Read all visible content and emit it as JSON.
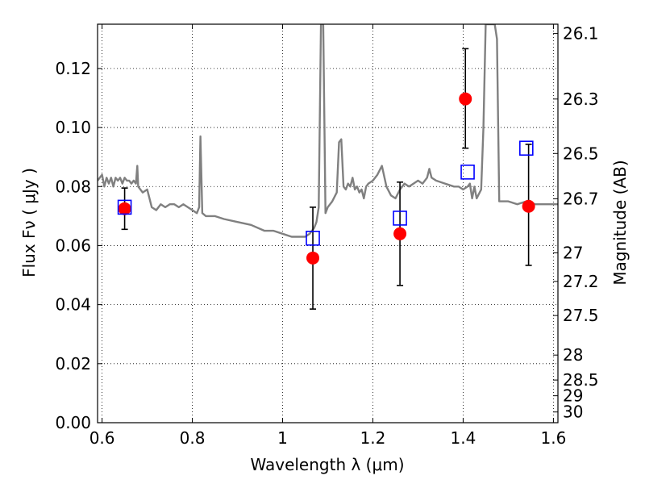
{
  "chart_data": {
    "type": "scatter",
    "xlabel": "Wavelength  λ (μm)",
    "ylabel": "Flux  Fν  ( μJy )",
    "y2label": "Magnitude (AB)",
    "xlim": [
      0.59,
      1.61
    ],
    "ylim": [
      0.0,
      0.135
    ],
    "grid": true,
    "x_ticks": [
      "0.6",
      "0.8",
      "1",
      "1.2",
      "1.4",
      "1.6"
    ],
    "x_tick_values": [
      0.6,
      0.8,
      1.0,
      1.2,
      1.4,
      1.6
    ],
    "y_ticks": [
      "0.00",
      "0.02",
      "0.04",
      "0.06",
      "0.08",
      "0.10",
      "0.12"
    ],
    "y_tick_values": [
      0.0,
      0.02,
      0.04,
      0.06,
      0.08,
      0.1,
      0.12
    ],
    "mag_ticks": [
      "26.1",
      "26.3",
      "26.5",
      "26.7",
      "27",
      "27.2",
      "27.5",
      "28",
      "28.5",
      "29",
      "30"
    ],
    "mag_tick_values": [
      26.1,
      26.3,
      26.5,
      26.7,
      27.0,
      27.2,
      27.5,
      28.0,
      28.5,
      29.0,
      30.0
    ],
    "series": [
      {
        "kind": "line",
        "color": "#808080",
        "x": [
          0.59,
          0.6,
          0.605,
          0.61,
          0.615,
          0.62,
          0.625,
          0.63,
          0.635,
          0.64,
          0.645,
          0.65,
          0.655,
          0.66,
          0.665,
          0.67,
          0.675,
          0.678,
          0.68,
          0.69,
          0.7,
          0.71,
          0.72,
          0.73,
          0.74,
          0.75,
          0.76,
          0.77,
          0.78,
          0.79,
          0.8,
          0.81,
          0.815,
          0.818,
          0.822,
          0.83,
          0.85,
          0.87,
          0.9,
          0.93,
          0.96,
          0.98,
          1.0,
          1.02,
          1.04,
          1.05,
          1.06,
          1.065,
          1.07,
          1.075,
          1.08,
          1.085,
          1.086,
          1.09,
          1.095,
          1.1,
          1.11,
          1.12,
          1.125,
          1.13,
          1.135,
          1.14,
          1.145,
          1.15,
          1.155,
          1.16,
          1.165,
          1.17,
          1.175,
          1.18,
          1.185,
          1.19,
          1.2,
          1.21,
          1.22,
          1.23,
          1.24,
          1.25,
          1.26,
          1.27,
          1.28,
          1.29,
          1.3,
          1.31,
          1.32,
          1.325,
          1.33,
          1.34,
          1.36,
          1.38,
          1.39,
          1.4,
          1.41,
          1.415,
          1.42,
          1.425,
          1.43,
          1.44,
          1.445,
          1.45,
          1.46,
          1.47,
          1.475,
          1.48,
          1.5,
          1.52,
          1.54,
          1.56,
          1.58,
          1.6,
          1.61
        ],
        "y": [
          0.082,
          0.084,
          0.08,
          0.083,
          0.081,
          0.083,
          0.08,
          0.083,
          0.082,
          0.083,
          0.081,
          0.083,
          0.082,
          0.082,
          0.081,
          0.082,
          0.081,
          0.087,
          0.08,
          0.078,
          0.079,
          0.073,
          0.072,
          0.074,
          0.073,
          0.074,
          0.074,
          0.073,
          0.074,
          0.073,
          0.072,
          0.071,
          0.073,
          0.097,
          0.071,
          0.07,
          0.07,
          0.069,
          0.068,
          0.067,
          0.065,
          0.065,
          0.064,
          0.063,
          0.063,
          0.063,
          0.064,
          0.065,
          0.066,
          0.068,
          0.073,
          0.135,
          0.135,
          0.135,
          0.071,
          0.073,
          0.075,
          0.078,
          0.095,
          0.096,
          0.08,
          0.079,
          0.081,
          0.08,
          0.083,
          0.079,
          0.08,
          0.078,
          0.079,
          0.076,
          0.08,
          0.081,
          0.082,
          0.084,
          0.087,
          0.08,
          0.077,
          0.076,
          0.079,
          0.081,
          0.08,
          0.081,
          0.082,
          0.081,
          0.083,
          0.086,
          0.083,
          0.082,
          0.081,
          0.08,
          0.08,
          0.079,
          0.08,
          0.081,
          0.076,
          0.08,
          0.076,
          0.079,
          0.1,
          0.135,
          0.135,
          0.135,
          0.13,
          0.075,
          0.075,
          0.074,
          0.075,
          0.074,
          0.074,
          0.074,
          0.074
        ]
      },
      {
        "kind": "errorbar",
        "color": "#ff0000",
        "marker": "circle",
        "x": [
          0.65,
          1.067,
          1.26,
          1.405,
          1.545
        ],
        "y": [
          0.0725,
          0.0558,
          0.064,
          0.1097,
          0.0733
        ],
        "yerr_low": [
          0.007,
          0.0173,
          0.0175,
          0.0167,
          0.02
        ],
        "yerr_high": [
          0.007,
          0.0172,
          0.0175,
          0.017,
          0.021
        ]
      },
      {
        "kind": "scatter",
        "color": "#0000ff",
        "marker": "open-square",
        "x": [
          0.65,
          1.067,
          1.26,
          1.41,
          1.54
        ],
        "y": [
          0.073,
          0.0625,
          0.0693,
          0.0849,
          0.093
        ]
      }
    ]
  }
}
